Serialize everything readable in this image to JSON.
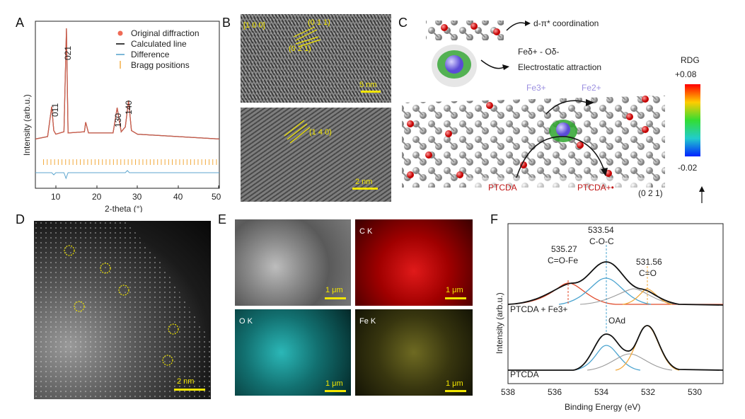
{
  "panels": {
    "A": "A",
    "B": "B",
    "C": "C",
    "D": "D",
    "E": "E",
    "F": "F"
  },
  "colors": {
    "original": "#ef6a55",
    "calculated": "#111111",
    "difference": "#5da6cf",
    "bragg": "#f2a93b",
    "scalebar": "#f2e600"
  },
  "panelA": {
    "legend": [
      "Original diffraction",
      "Calculated line",
      "Difference",
      "Bragg positions"
    ],
    "peak_labels": [
      "011",
      "021",
      "130",
      "140"
    ],
    "ylabel": "Intensity (arb.u.)",
    "xlabel": "2-theta (°)",
    "xticks": [
      "10",
      "20",
      "30",
      "40",
      "50"
    ]
  },
  "panelB": {
    "top_labels": [
      "[1 0 0]",
      "(0 1 1)",
      "(0 2 1)"
    ],
    "top_scale": "5 nm",
    "bottom_label": "(1 4 0)",
    "bottom_scale": "2 nm"
  },
  "panelC": {
    "coord_label": "d-π* coordination",
    "electro_line1": "Feδ+ - Oδ-",
    "electro_line2": "Electrostatic attraction",
    "rdg_title": "RDG",
    "rdg_max": "+0.08",
    "rdg_min": "-0.02",
    "fe3": "Fe3+",
    "fe2": "Fe2+",
    "ptcda": "PTCDA",
    "ptcda_plus": "PTCDA+•",
    "plane": "(0 2 1)"
  },
  "panelD": {
    "scale": "2 nm"
  },
  "panelE": {
    "scale": "1 μm",
    "maps": [
      "C K",
      "O K",
      "Fe  K"
    ]
  },
  "panelF": {
    "ylabel": "Intensity (arb.u.)",
    "xlabel": "Binding Energy (eV)",
    "xticks": [
      "538",
      "536",
      "534",
      "532",
      "530"
    ],
    "peak1_value": "535.27",
    "peak1_label": "C=O-Fe",
    "peak2_value": "533.54",
    "peak2_label": "C-O-C",
    "peak3_value": "531.56",
    "peak3_label": "C=O",
    "oad": "OAd",
    "sample_top": "PTCDA + Fe3+",
    "sample_bottom": "PTCDA"
  },
  "chart_data": [
    {
      "type": "line",
      "panel": "A",
      "xlabel": "2-theta (°)",
      "ylabel": "Intensity (arb.u.)",
      "xlim": [
        5,
        50
      ],
      "series": [
        {
          "name": "Calculated line",
          "x": [
            5,
            8,
            9,
            9.5,
            10,
            12,
            12.6,
            13,
            17,
            17.3,
            18,
            24,
            25,
            26,
            27,
            27.8,
            28.5,
            30,
            40,
            50
          ],
          "y": [
            0.08,
            0.1,
            0.35,
            0.15,
            0.12,
            0.14,
            1.0,
            0.13,
            0.14,
            0.22,
            0.13,
            0.13,
            0.34,
            0.14,
            0.18,
            0.4,
            0.15,
            0.12,
            0.1,
            0.08
          ]
        }
      ],
      "peaks": [
        {
          "label": "011",
          "x": 9.3
        },
        {
          "label": "021",
          "x": 12.6
        },
        {
          "label": "130",
          "x": 25
        },
        {
          "label": "140",
          "x": 27.8
        }
      ]
    },
    {
      "type": "line",
      "panel": "F",
      "xlabel": "Binding Energy (eV)",
      "ylabel": "Intensity (arb.u.)",
      "xlim": [
        538,
        529
      ],
      "series": [
        {
          "name": "PTCDA + Fe3+",
          "x": [
            538,
            536.5,
            535.3,
            534.5,
            533.5,
            532.5,
            531.6,
            530.8,
            529
          ],
          "y": [
            0.02,
            0.08,
            0.35,
            0.45,
            0.75,
            0.42,
            0.3,
            0.06,
            0.01
          ]
        },
        {
          "name": "PTCDA",
          "x": [
            538,
            536,
            534.5,
            533.6,
            532.7,
            531.6,
            530.8,
            529
          ],
          "y": [
            0.0,
            0.02,
            0.3,
            0.55,
            0.4,
            0.78,
            0.2,
            0.01
          ]
        }
      ],
      "peaks": [
        {
          "value": "535.27",
          "label": "C=O-Fe"
        },
        {
          "value": "533.54",
          "label": "C-O-C"
        },
        {
          "value": "531.56",
          "label": "C=O"
        }
      ]
    }
  ]
}
